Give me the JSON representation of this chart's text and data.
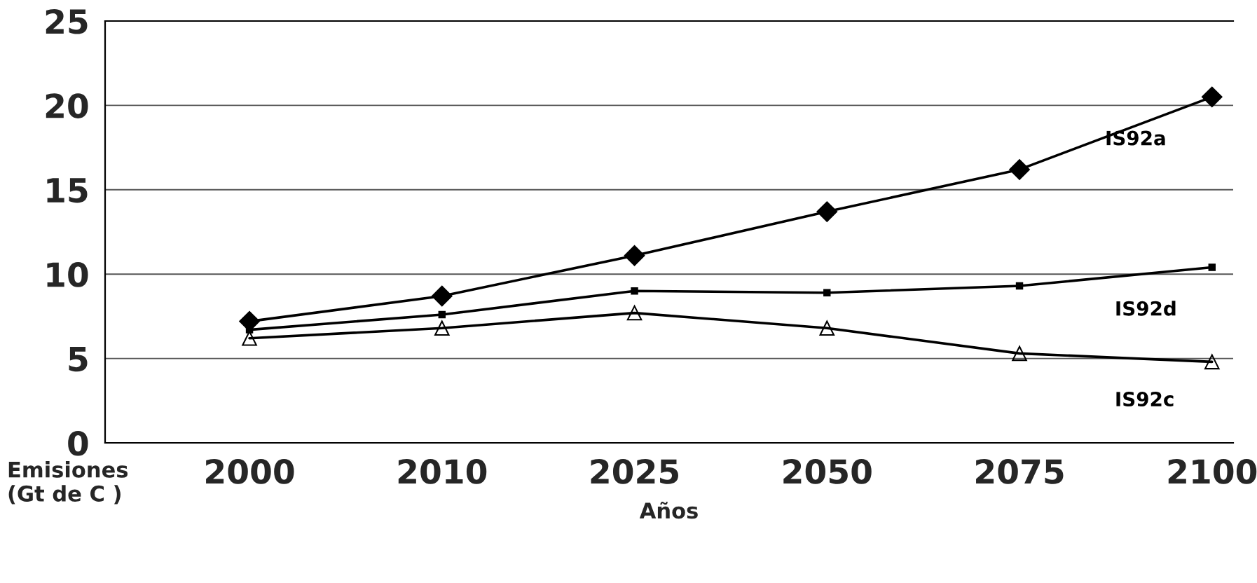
{
  "chart_data": {
    "type": "line",
    "xlabel": "Años",
    "ylabel": "Emisiones\n(Gt de C )",
    "categories": [
      "2000",
      "2010",
      "2025",
      "2050",
      "2075",
      "2100"
    ],
    "series": [
      {
        "name": "IS92a",
        "color": "#000000",
        "marker": "diamond",
        "values": [
          7.2,
          8.7,
          11.1,
          13.7,
          16.2,
          20.5
        ]
      },
      {
        "name": "IS92d",
        "color": "#000000",
        "marker": "square",
        "values": [
          6.7,
          7.6,
          9.0,
          8.9,
          9.3,
          10.4
        ]
      },
      {
        "name": "IS92c",
        "color": "#000000",
        "marker": "triangle",
        "values": [
          6.2,
          6.8,
          7.7,
          6.8,
          5.3,
          4.8
        ]
      }
    ],
    "ylim": [
      0,
      25
    ],
    "yticks": [
      0,
      5,
      10,
      15,
      20,
      25
    ],
    "grid": "y",
    "legend": false,
    "line_style": "solid"
  }
}
